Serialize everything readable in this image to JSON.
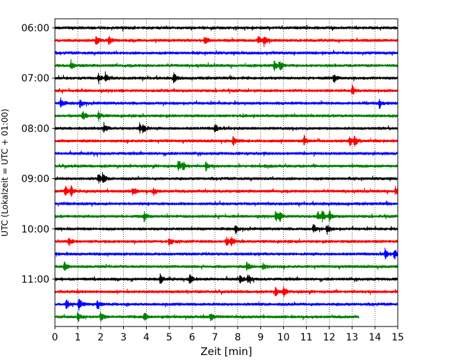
{
  "chart_data": {
    "type": "line",
    "title": "",
    "xlabel": "Zeit  [min]",
    "ylabel": "UTC (Lokalzeit = UTC + 01:00)",
    "xlim": [
      0,
      15
    ],
    "x_ticks": [
      "0",
      "1",
      "2",
      "3",
      "4",
      "5",
      "6",
      "7",
      "8",
      "9",
      "10",
      "11",
      "12",
      "13",
      "14",
      "15"
    ],
    "y_ticks": [
      {
        "label": "06:00",
        "trace": 0
      },
      {
        "label": "07:00",
        "trace": 4
      },
      {
        "label": "08:00",
        "trace": 8
      },
      {
        "label": "09:00",
        "trace": 12
      },
      {
        "label": "10:00",
        "trace": 16
      },
      {
        "label": "11:00",
        "trace": 20
      }
    ],
    "grid": "vertical dotted",
    "trace_interval_min": 15,
    "colors": [
      "#000000",
      "#ff0000",
      "#0000ff",
      "#008000"
    ],
    "series": [
      {
        "start": "06:00",
        "color": "#000000",
        "events": []
      },
      {
        "start": "06:15",
        "color": "#ff0000",
        "events": [
          1.8,
          2.35,
          6.55,
          8.9,
          9.15
        ]
      },
      {
        "start": "06:30",
        "color": "#0000ff",
        "events": []
      },
      {
        "start": "06:45",
        "color": "#008000",
        "events": [
          0.7,
          9.6,
          9.85
        ]
      },
      {
        "start": "07:00",
        "color": "#000000",
        "events": [
          1.9,
          2.2,
          5.2,
          12.2
        ]
      },
      {
        "start": "07:15",
        "color": "#ff0000",
        "events": [
          13.0
        ]
      },
      {
        "start": "07:30",
        "color": "#0000ff",
        "events": [
          0.25,
          1.1,
          14.2
        ]
      },
      {
        "start": "07:45",
        "color": "#008000",
        "events": [
          1.2,
          1.9
        ]
      },
      {
        "start": "08:00",
        "color": "#000000",
        "events": [
          2.15,
          3.7,
          3.85,
          7.0
        ]
      },
      {
        "start": "08:15",
        "color": "#ff0000",
        "events": [
          7.8,
          10.9,
          12.9,
          13.1
        ]
      },
      {
        "start": "08:30",
        "color": "#0000ff",
        "events": []
      },
      {
        "start": "08:45",
        "color": "#008000",
        "events": [
          5.4,
          5.6,
          6.6
        ]
      },
      {
        "start": "09:00",
        "color": "#000000",
        "events": [
          1.9,
          2.1
        ]
      },
      {
        "start": "09:15",
        "color": "#ff0000",
        "events": [
          0.45,
          0.7,
          3.4,
          4.3,
          14.9
        ]
      },
      {
        "start": "09:30",
        "color": "#0000ff",
        "events": []
      },
      {
        "start": "09:45",
        "color": "#008000",
        "events": [
          3.9,
          9.65,
          9.85,
          11.5,
          11.7,
          12.0
        ]
      },
      {
        "start": "10:00",
        "color": "#000000",
        "events": [
          7.9,
          11.3,
          11.9
        ]
      },
      {
        "start": "10:15",
        "color": "#ff0000",
        "events": [
          0.6,
          5.0,
          7.5,
          7.7
        ]
      },
      {
        "start": "10:30",
        "color": "#0000ff",
        "events": [
          14.45,
          14.85
        ]
      },
      {
        "start": "10:45",
        "color": "#008000",
        "events": [
          0.4,
          8.4,
          9.1
        ]
      },
      {
        "start": "11:00",
        "color": "#000000",
        "events": [
          4.6,
          5.9,
          8.1,
          8.45
        ]
      },
      {
        "start": "11:15",
        "color": "#ff0000",
        "events": [
          9.65,
          10.0
        ]
      },
      {
        "start": "11:30",
        "color": "#0000ff",
        "events": [
          0.5,
          1.05,
          1.85
        ]
      },
      {
        "start": "11:45",
        "color": "#008000",
        "events": [
          1.0,
          2.0,
          3.9,
          6.8
        ],
        "end": 13.3
      }
    ]
  }
}
